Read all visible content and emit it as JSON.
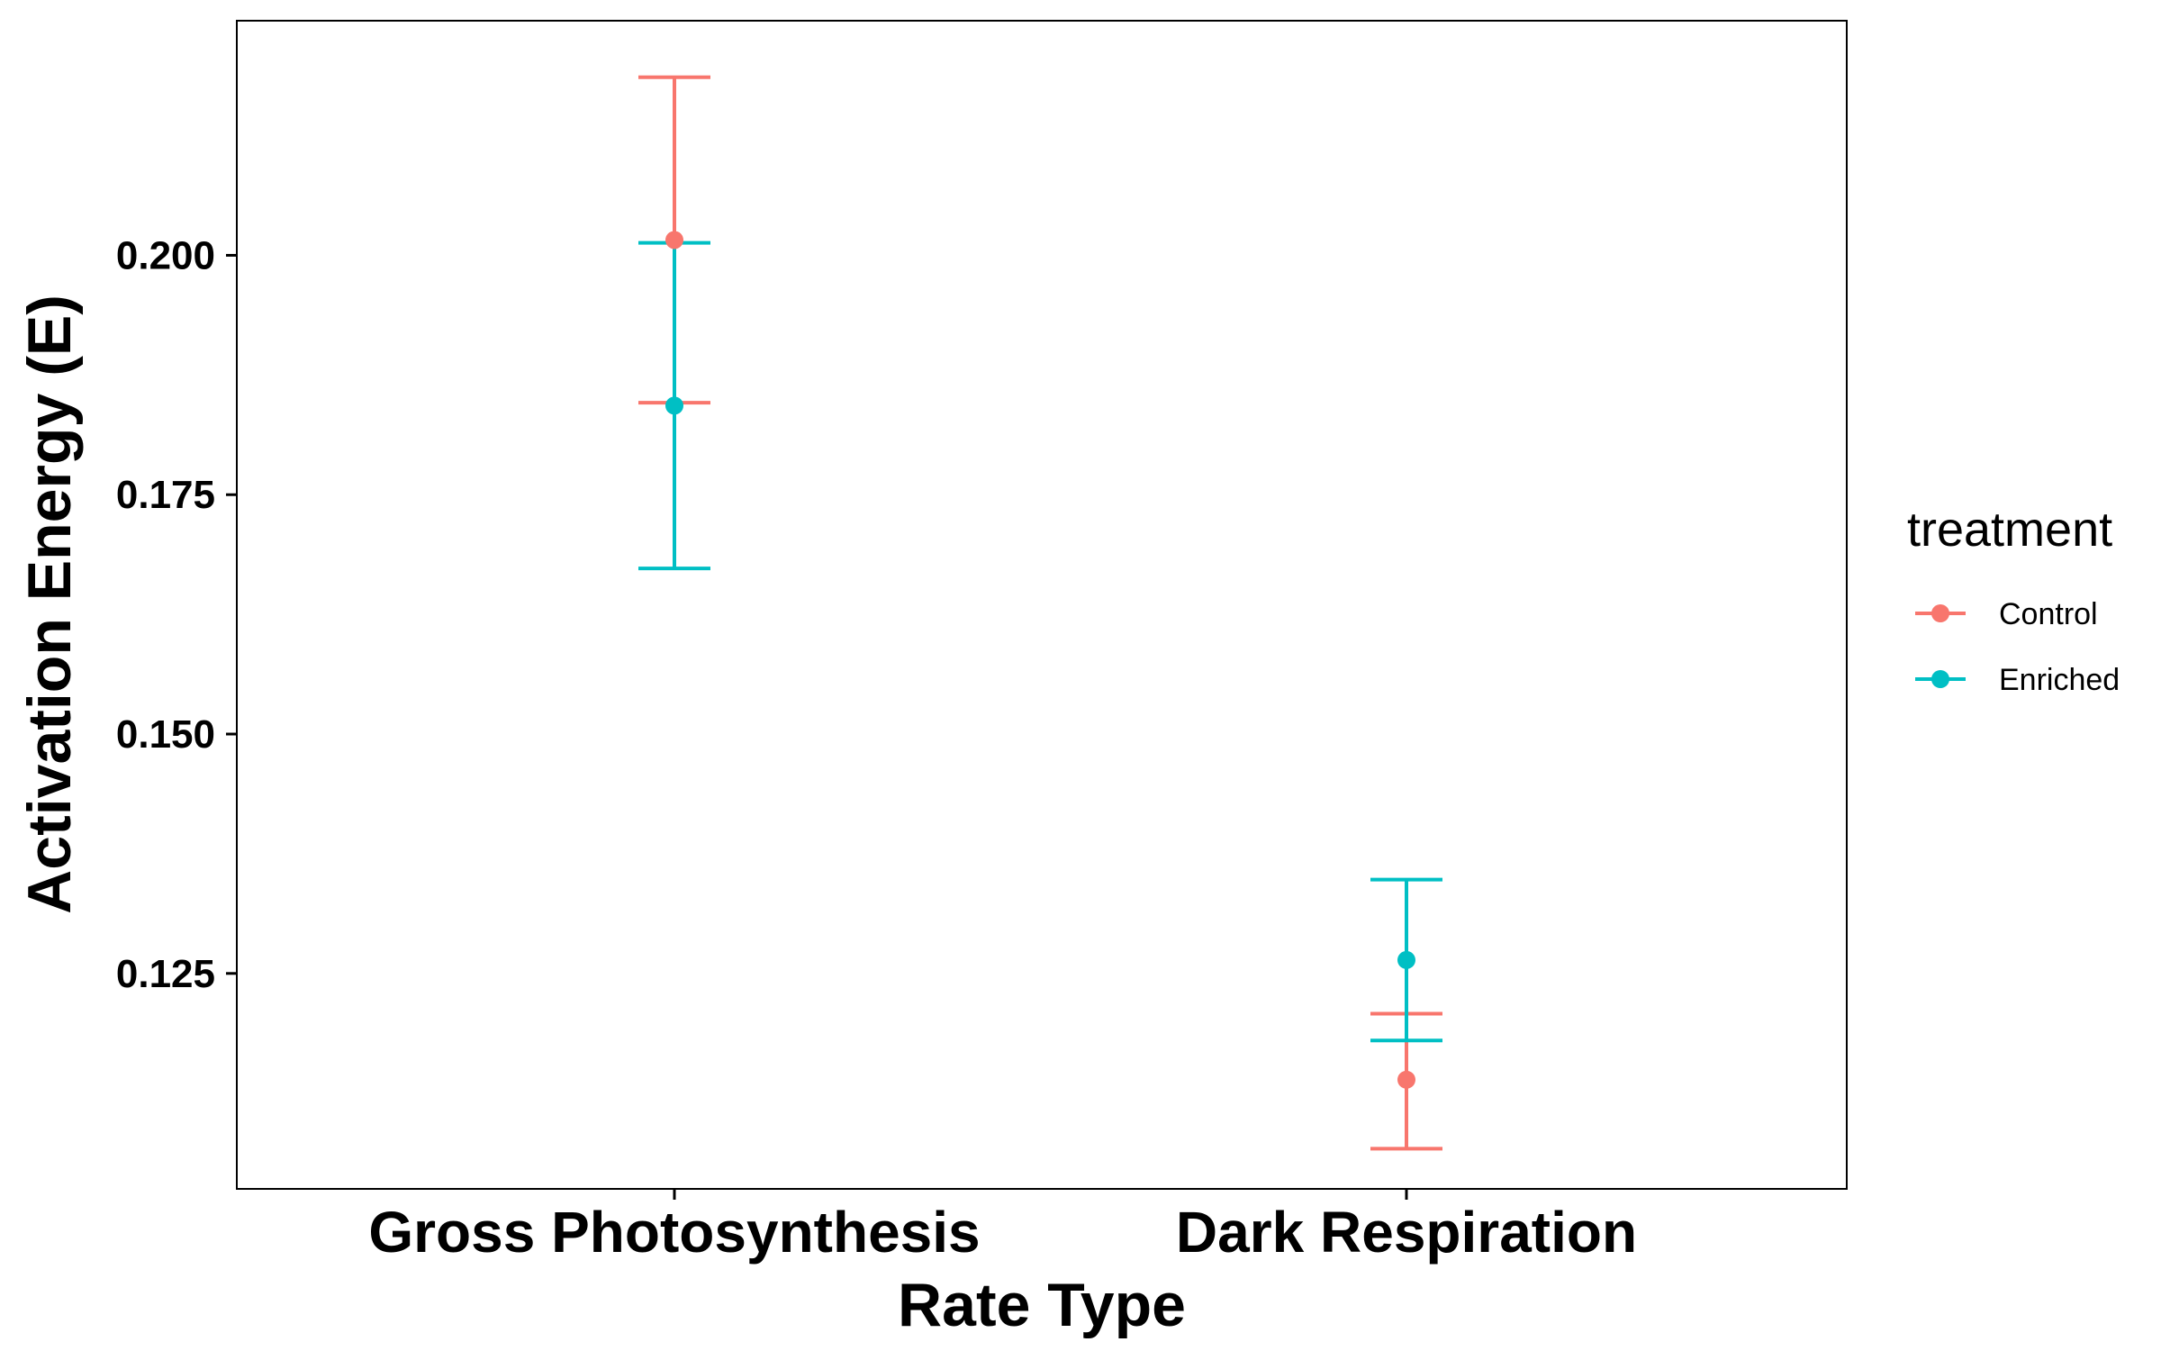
{
  "chart_data": {
    "type": "scatter",
    "title": "",
    "xlabel": "Rate Type",
    "ylabel": "Activation Energy (E)",
    "categories": [
      "Gross Photosynthesis",
      "Dark Respiration"
    ],
    "ylim": [
      0.1025,
      0.2245
    ],
    "y_ticks": [
      0.125,
      0.15,
      0.175,
      0.2
    ],
    "y_tick_labels": [
      "0.125",
      "0.150",
      "0.175",
      "0.200"
    ],
    "grid": false,
    "legend": {
      "title": "treatment",
      "position": "right"
    },
    "series": [
      {
        "name": "Control",
        "color": "#F8766D",
        "values": [
          0.2016,
          0.1139
        ],
        "lower": [
          0.1846,
          0.1067
        ],
        "upper": [
          0.2186,
          0.1208
        ]
      },
      {
        "name": "Enriched",
        "color": "#00BFC4",
        "values": [
          0.1843,
          0.1264
        ],
        "lower": [
          0.1673,
          0.118
        ],
        "upper": [
          0.2013,
          0.1348
        ]
      }
    ]
  }
}
